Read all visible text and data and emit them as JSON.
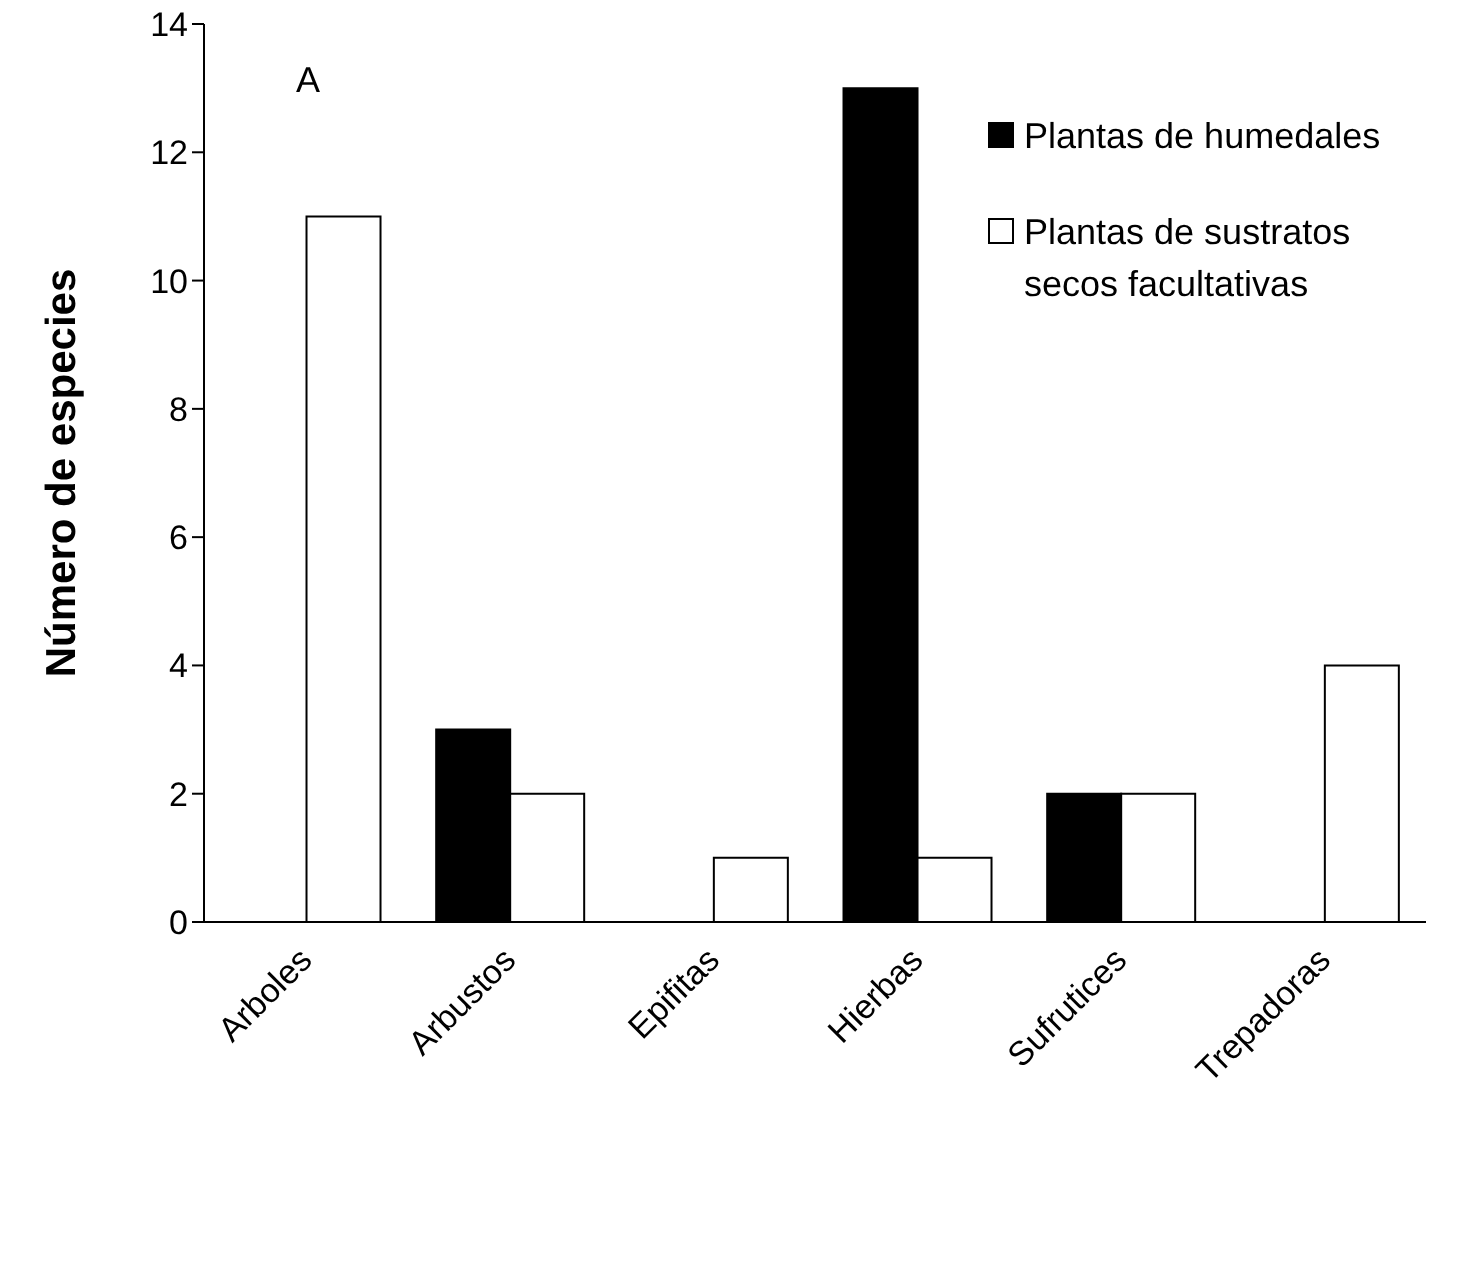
{
  "chart_data": {
    "type": "bar",
    "ylabel": "Número de especies",
    "categories": [
      "Arboles",
      "Arbustos",
      "Epifitas",
      "Hierbas",
      "Sufrutices",
      "Trepadoras"
    ],
    "series": [
      {
        "name": "Plantas de humedales",
        "color": "#000000",
        "values": [
          0,
          3,
          0,
          13,
          2,
          0
        ]
      },
      {
        "name": "Plantas de sustratos secos facultativas",
        "color": "#ffffff",
        "values": [
          11,
          2,
          1,
          1,
          2,
          4
        ]
      }
    ],
    "ylim": [
      0,
      14
    ],
    "yticks": [
      0,
      2,
      4,
      6,
      8,
      10,
      12,
      14
    ],
    "grid": false,
    "legend": "top right",
    "annotations": [
      "A"
    ]
  }
}
